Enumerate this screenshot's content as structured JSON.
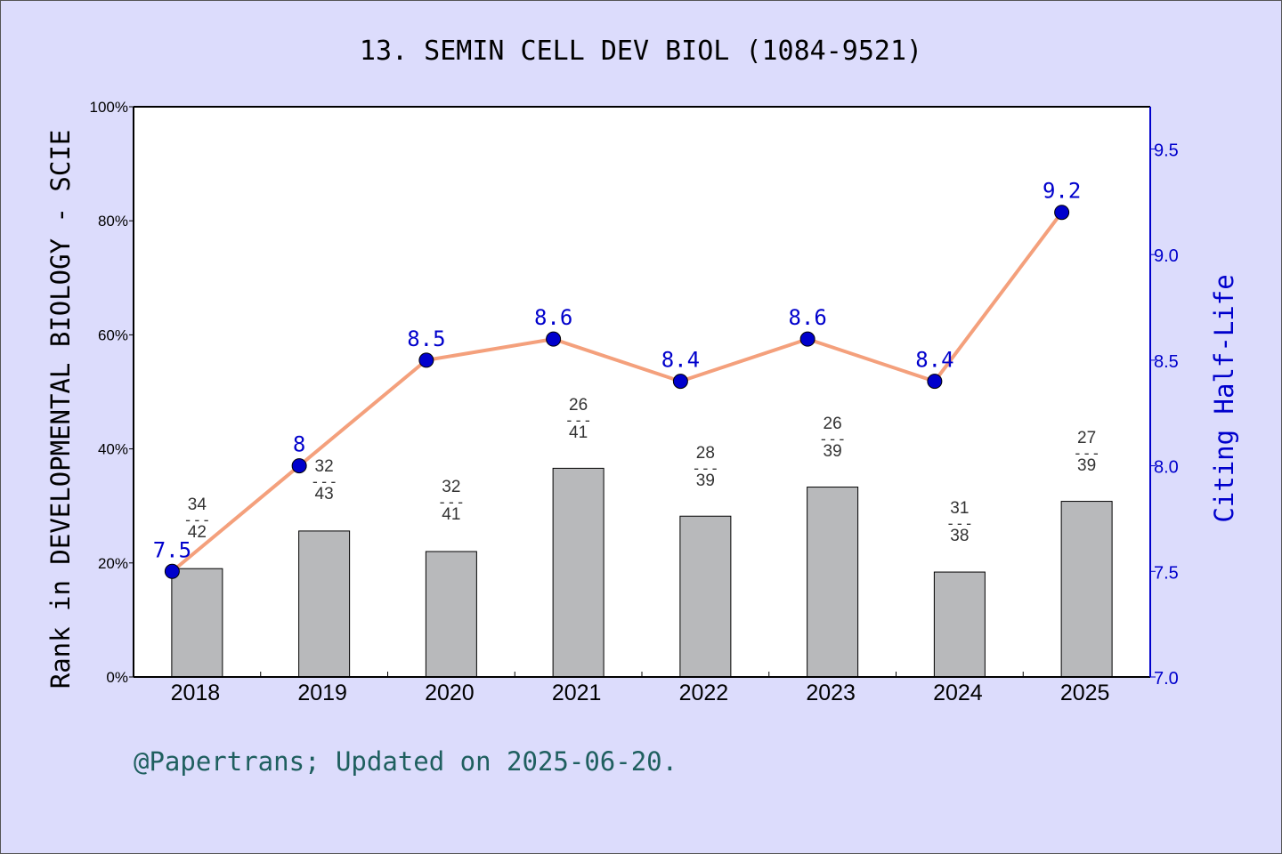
{
  "chart_data": {
    "type": "bar+line",
    "title": "13. SEMIN CELL DEV BIOL (1084-9521)",
    "categories": [
      "2018",
      "2019",
      "2020",
      "2021",
      "2022",
      "2023",
      "2024",
      "2025"
    ],
    "bars": {
      "values_percent": [
        19.0,
        25.6,
        22.0,
        36.6,
        28.2,
        33.3,
        18.4,
        30.8
      ],
      "rank": [
        "34",
        "32",
        "32",
        "26",
        "28",
        "26",
        "31",
        "27"
      ],
      "total": [
        "42",
        "43",
        "41",
        "41",
        "39",
        "39",
        "38",
        "39"
      ],
      "separator": "---",
      "color": "#b8b9bb"
    },
    "line": {
      "values": [
        7.5,
        8.0,
        8.5,
        8.6,
        8.4,
        8.6,
        8.4,
        9.2
      ],
      "labels": [
        "7.5",
        "8",
        "8.5",
        "8.6",
        "8.4",
        "8.6",
        "8.4",
        "9.2"
      ],
      "line_color": "#f4a07c",
      "marker_color": "#0000cc"
    },
    "ylabel_left": "Rank in DEVELOPMENTAL BIOLOGY - SCIE",
    "ylabel_right": "Citing Half-Life",
    "ylim_left": [
      0,
      100
    ],
    "ylim_right": [
      7.0,
      9.7
    ],
    "yticks_left": [
      "0%",
      "20%",
      "40%",
      "60%",
      "80%",
      "100%"
    ],
    "yticks_left_values": [
      0,
      20,
      40,
      60,
      80,
      100
    ],
    "yticks_right": [
      "7.0",
      "7.5",
      "8.0",
      "8.5",
      "9.0",
      "9.5"
    ],
    "yticks_right_values": [
      7.0,
      7.5,
      8.0,
      8.5,
      9.0,
      9.5
    ],
    "footer": "@Papertrans; Updated on 2025-06-20.",
    "colors": {
      "background": "#dcdcfc",
      "plot_bg": "#ffffff",
      "right_axis": "#0000cc",
      "footer": "#1f5f5f"
    }
  }
}
